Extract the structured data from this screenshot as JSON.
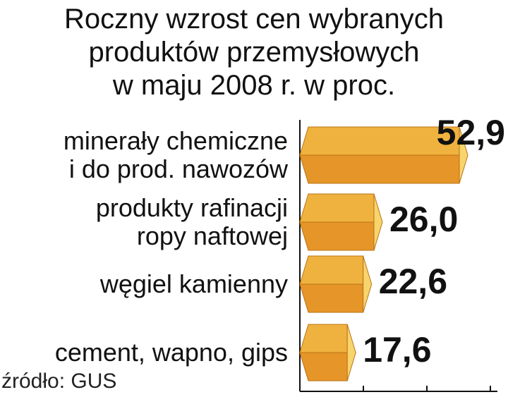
{
  "chart_data": {
    "type": "bar",
    "orientation": "horizontal",
    "title": "Roczny wzrost cen wybranych\nproduktów przemysłowych\nw maju 2008 r. w proc.",
    "categories": [
      "minerały chemiczne\ni do prod. nawozów",
      "produkty rafinacji\nropy naftowej",
      "węgiel kamienny",
      "cement, wapno, gips"
    ],
    "values": [
      52.9,
      26.0,
      22.6,
      17.6
    ],
    "value_labels": [
      "52,9",
      "26,0",
      "22,6",
      "17,6"
    ],
    "color": "#f0b23e",
    "xlim": [
      0,
      60
    ],
    "xticks": [
      0,
      20,
      40,
      60
    ],
    "source": "źródło: GUS"
  }
}
